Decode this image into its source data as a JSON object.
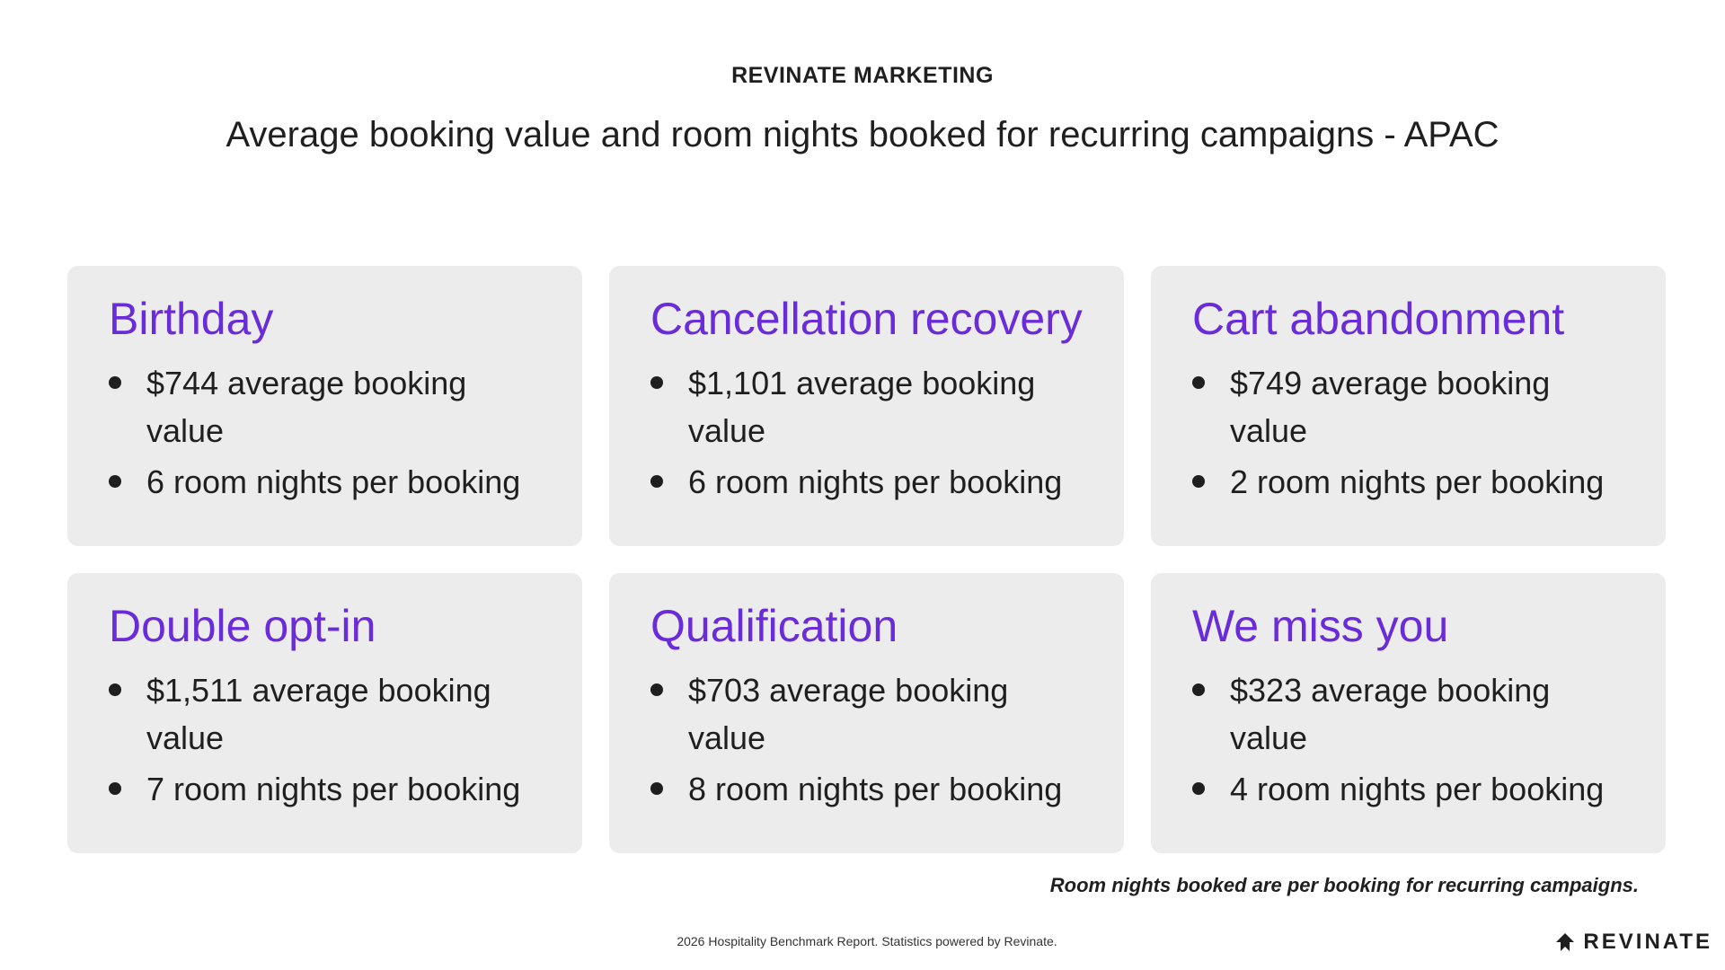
{
  "header": {
    "eyebrow": "REVINATE MARKETING",
    "title": "Average booking value and room nights booked for recurring campaigns - APAC"
  },
  "cards": [
    {
      "title": "Birthday",
      "bullets": [
        "$744 average booking value",
        "6 room nights per booking"
      ]
    },
    {
      "title": "Cancellation recovery",
      "bullets": [
        "$1,101 average booking value",
        "6 room nights per booking"
      ]
    },
    {
      "title": "Cart abandonment",
      "bullets": [
        "$749 average booking value",
        "2 room nights per booking"
      ]
    },
    {
      "title": "Double opt-in",
      "bullets": [
        "$1,511 average booking value",
        "7 room nights per booking"
      ]
    },
    {
      "title": "Qualification",
      "bullets": [
        "$703 average booking value",
        "8 room nights per booking"
      ]
    },
    {
      "title": "We miss you",
      "bullets": [
        "$323 average booking value",
        "4 room nights per booking"
      ]
    }
  ],
  "note": "Room nights booked are per booking for recurring campaigns.",
  "footer": "2026 Hospitality Benchmark Report. Statistics powered by Revinate.",
  "logo": {
    "text": "REVINATE",
    "icon": "revinate-logo-icon"
  },
  "colors": {
    "accent": "#6a2bd9",
    "card_bg": "#ececed",
    "text": "#1f1f1f"
  }
}
